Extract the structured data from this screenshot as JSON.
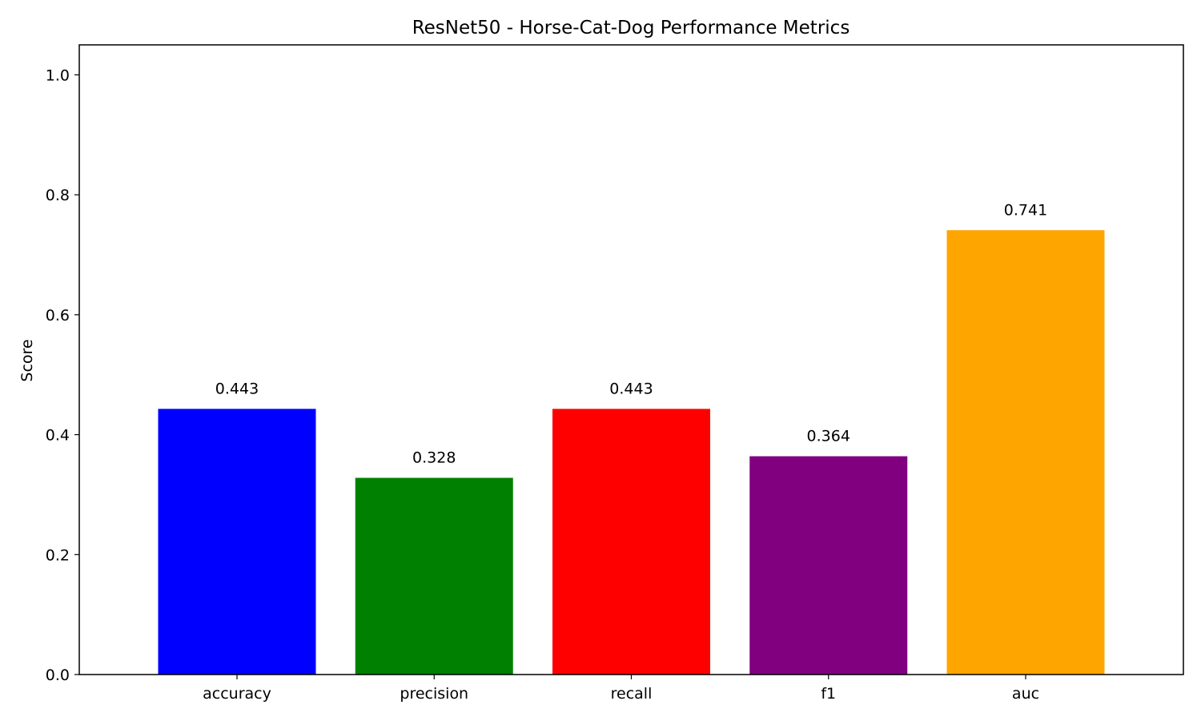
{
  "chart_data": {
    "type": "bar",
    "title": "ResNet50 - Horse-Cat-Dog Performance Metrics",
    "xlabel": "",
    "ylabel": "Score",
    "ylim": [
      0,
      1.05
    ],
    "yticks": [
      0.0,
      0.2,
      0.4,
      0.6,
      0.8,
      1.0
    ],
    "ytick_labels": [
      "0.0",
      "0.2",
      "0.4",
      "0.6",
      "0.8",
      "1.0"
    ],
    "categories": [
      "accuracy",
      "precision",
      "recall",
      "f1",
      "auc"
    ],
    "values": [
      0.443,
      0.328,
      0.443,
      0.364,
      0.741
    ],
    "value_labels": [
      "0.443",
      "0.328",
      "0.443",
      "0.364",
      "0.741"
    ],
    "colors": [
      "#0000ff",
      "#008000",
      "#ff0000",
      "#800080",
      "#ffa500"
    ],
    "grid": false,
    "legend": "none"
  }
}
